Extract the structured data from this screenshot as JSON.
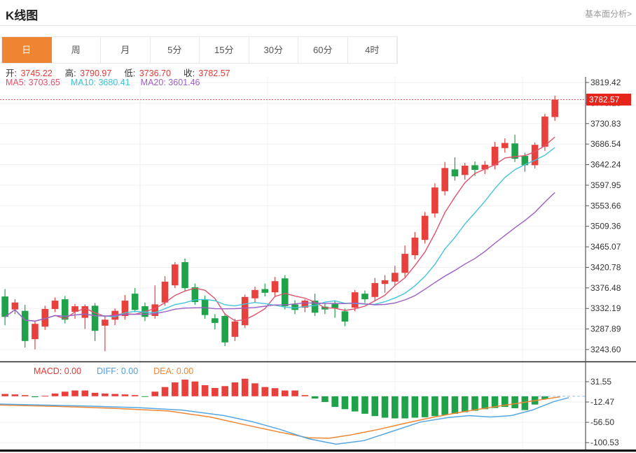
{
  "header": {
    "title": "K线图",
    "link": "基本面分析>"
  },
  "tabs": {
    "items": [
      "日",
      "周",
      "月",
      "5分",
      "15分",
      "30分",
      "60分",
      "4时"
    ],
    "active_index": 0,
    "active_bg": "#ef8432"
  },
  "info_bar": {
    "fields": [
      {
        "label": "开:",
        "value": "3745.22"
      },
      {
        "label": "高:",
        "value": "3790.97"
      },
      {
        "label": "低:",
        "value": "3736.70"
      },
      {
        "label": "收:",
        "value": "3782.57"
      }
    ],
    "value_color": "#e53935"
  },
  "ma_bar": {
    "items": [
      {
        "label": "MA5:",
        "value": "3703.65",
        "color": "#e0516d"
      },
      {
        "label": "MA10:",
        "value": "3680.41",
        "color": "#3fc1d6"
      },
      {
        "label": "MA20:",
        "value": "3601.46",
        "color": "#9c5fc4"
      }
    ]
  },
  "macd_bar": {
    "items": [
      {
        "label": "MACD:",
        "value": "0.00",
        "color": "#e53935"
      },
      {
        "label": "DIFF:",
        "value": "0.00",
        "color": "#4f9ee0"
      },
      {
        "label": "DEA:",
        "value": "0.00",
        "color": "#ee8633"
      }
    ]
  },
  "price_axis": {
    "ticks": [
      "3819.42",
      "3775.13",
      "3730.83",
      "3686.54",
      "3642.24",
      "3597.95",
      "3553.66",
      "3509.36",
      "3465.07",
      "3420.78",
      "3376.48",
      "3332.19",
      "3287.89",
      "3243.60"
    ],
    "current_label": "3782.57",
    "badge_color": "#e5251c"
  },
  "macd_axis": {
    "ticks": [
      "31.55",
      "-12.47",
      "-56.50",
      "-100.53"
    ]
  },
  "colors": {
    "up": "#e8403c",
    "down": "#1fa24a",
    "ma5": "#e0516d",
    "ma10": "#45c3da",
    "ma20": "#9c5fc4",
    "diff": "#55a7e3",
    "dea": "#ee8633",
    "grid": "#f1f1f1",
    "axis": "#555",
    "label": "#333",
    "dotted_price_line": "#e06060",
    "zero_dash": "#8fc2ea"
  },
  "chart_data": {
    "type": "candlestick+macd",
    "title": "K线图 (日)",
    "ohlc_display": {
      "open": 3745.22,
      "high": 3790.97,
      "low": 3736.7,
      "close": 3782.57
    },
    "ma_display": {
      "MA5": 3703.65,
      "MA10": 3680.41,
      "MA20": 3601.46
    },
    "current_price": 3782.57,
    "price_axis_range": [
      3243.6,
      3819.42
    ],
    "price_tick_step": 44.295,
    "macd_axis_range": [
      -100.53,
      31.55
    ],
    "up_means": "close>=open (red)",
    "down_means": "close<open (green)",
    "candles_ohlc": [
      [
        3358,
        3374,
        3296,
        3314
      ],
      [
        3330,
        3352,
        3320,
        3345
      ],
      [
        3327,
        3340,
        3248,
        3262
      ],
      [
        3266,
        3305,
        3244,
        3299
      ],
      [
        3293,
        3338,
        3286,
        3331
      ],
      [
        3331,
        3356,
        3324,
        3349
      ],
      [
        3352,
        3359,
        3300,
        3308
      ],
      [
        3325,
        3342,
        3310,
        3337
      ],
      [
        3312,
        3341,
        3288,
        3337
      ],
      [
        3338,
        3344,
        3262,
        3284
      ],
      [
        3295,
        3314,
        3240,
        3308
      ],
      [
        3308,
        3332,
        3296,
        3327
      ],
      [
        3316,
        3361,
        3308,
        3349
      ],
      [
        3364,
        3376,
        3324,
        3329
      ],
      [
        3337,
        3345,
        3305,
        3314
      ],
      [
        3316,
        3382,
        3310,
        3341
      ],
      [
        3345,
        3402,
        3338,
        3390
      ],
      [
        3382,
        3432,
        3376,
        3427
      ],
      [
        3432,
        3440,
        3370,
        3376
      ],
      [
        3378,
        3386,
        3340,
        3346
      ],
      [
        3352,
        3360,
        3310,
        3318
      ],
      [
        3311,
        3320,
        3287,
        3301
      ],
      [
        3316,
        3322,
        3251,
        3259
      ],
      [
        3271,
        3310,
        3262,
        3304
      ],
      [
        3296,
        3362,
        3290,
        3357
      ],
      [
        3354,
        3379,
        3344,
        3372
      ],
      [
        3374,
        3386,
        3358,
        3366
      ],
      [
        3367,
        3400,
        3358,
        3391
      ],
      [
        3397,
        3404,
        3330,
        3337
      ],
      [
        3341,
        3350,
        3320,
        3329
      ],
      [
        3334,
        3352,
        3324,
        3349
      ],
      [
        3349,
        3364,
        3316,
        3323
      ],
      [
        3336,
        3344,
        3320,
        3330
      ],
      [
        3342,
        3348,
        3312,
        3333
      ],
      [
        3326,
        3332,
        3294,
        3304
      ],
      [
        3334,
        3372,
        3326,
        3367
      ],
      [
        3364,
        3371,
        3344,
        3352
      ],
      [
        3357,
        3398,
        3348,
        3387
      ],
      [
        3385,
        3404,
        3366,
        3393
      ],
      [
        3390,
        3424,
        3382,
        3409
      ],
      [
        3409,
        3468,
        3400,
        3450
      ],
      [
        3447,
        3497,
        3438,
        3485
      ],
      [
        3480,
        3540,
        3472,
        3532
      ],
      [
        3537,
        3602,
        3528,
        3593
      ],
      [
        3585,
        3648,
        3576,
        3635
      ],
      [
        3632,
        3658,
        3608,
        3617
      ],
      [
        3620,
        3646,
        3610,
        3640
      ],
      [
        3641,
        3649,
        3618,
        3631
      ],
      [
        3632,
        3650,
        3622,
        3642
      ],
      [
        3641,
        3691,
        3632,
        3681
      ],
      [
        3678,
        3699,
        3668,
        3689
      ],
      [
        3688,
        3707,
        3648,
        3655
      ],
      [
        3661,
        3668,
        3627,
        3641
      ],
      [
        3641,
        3690,
        3634,
        3685
      ],
      [
        3681,
        3752,
        3672,
        3746
      ],
      [
        3745,
        3790.97,
        3736.7,
        3782.57
      ]
    ],
    "ma_periods": [
      5,
      10,
      20
    ],
    "macd_hist": [
      5,
      4,
      2.5,
      -2,
      1,
      6,
      10,
      12.5,
      12.5,
      7.5,
      6,
      5,
      4,
      2.5,
      -1.5,
      10,
      20,
      30,
      36,
      32,
      24,
      18,
      22,
      30,
      38,
      28,
      20,
      17.5,
      12.5,
      12.5,
      2.5,
      -5,
      -12.5,
      -23,
      -28,
      -33,
      -38,
      -43,
      -46.5,
      -48,
      -48,
      -46.5,
      -45.5,
      -43,
      -40.5,
      -38,
      -34.5,
      -31.5,
      -28,
      -25.5,
      -23,
      -26,
      -30,
      -18,
      -6,
      0
    ],
    "diff_line": [
      [
        0,
        -17
      ],
      [
        60,
        -19
      ],
      [
        120,
        -21
      ],
      [
        200,
        -25
      ],
      [
        260,
        -30
      ],
      [
        320,
        -42
      ],
      [
        360,
        -55
      ],
      [
        400,
        -72
      ],
      [
        440,
        -92
      ],
      [
        480,
        -104
      ],
      [
        520,
        -96
      ],
      [
        560,
        -76
      ],
      [
        600,
        -56
      ],
      [
        640,
        -46
      ],
      [
        670,
        -42
      ],
      [
        700,
        -45
      ],
      [
        730,
        -42
      ],
      [
        760,
        -30
      ],
      [
        790,
        -12
      ],
      [
        812,
        -3
      ]
    ],
    "dea_line": [
      [
        0,
        -19
      ],
      [
        80,
        -22
      ],
      [
        160,
        -26
      ],
      [
        240,
        -32
      ],
      [
        300,
        -45
      ],
      [
        350,
        -62
      ],
      [
        400,
        -78
      ],
      [
        440,
        -90
      ],
      [
        470,
        -91
      ],
      [
        500,
        -84
      ],
      [
        540,
        -72
      ],
      [
        580,
        -58
      ],
      [
        620,
        -45
      ],
      [
        660,
        -34
      ],
      [
        700,
        -24
      ],
      [
        740,
        -15
      ],
      [
        770,
        -8
      ],
      [
        800,
        -1
      ]
    ],
    "grid": true,
    "legend_position": "top-left overlay"
  }
}
